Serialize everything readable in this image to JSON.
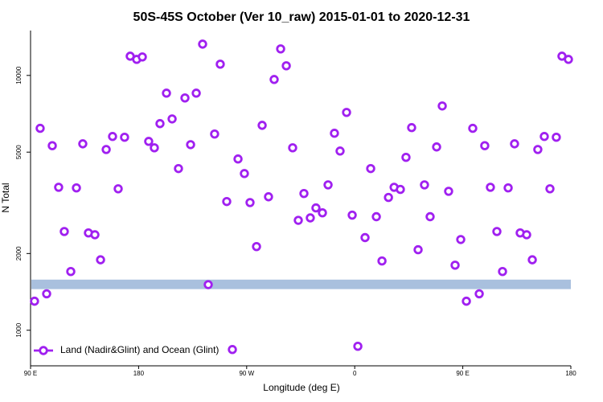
{
  "chart_data": {
    "type": "scatter",
    "title": "50S-45S October (Ver 10_raw)   2015-01-01 to 2020-12-31",
    "x_label": "Longitude (deg E)",
    "y_label": "N Total",
    "log_y": true,
    "xlim": [
      90,
      540
    ],
    "ylim": [
      725,
      15000
    ],
    "xticks": [
      {
        "value": 90,
        "label": "90 E"
      },
      180,
      {
        "value": 270,
        "label": "90 W"
      },
      {
        "value": 360,
        "label": "0"
      },
      {
        "value": 450,
        "label": "90 E"
      },
      {
        "value": 540,
        "label": "180"
      }
    ],
    "yticks": [
      1000,
      2000,
      5000,
      10000
    ],
    "legend": "bottom-left",
    "band": {
      "ylim": [
        1450,
        1580
      ],
      "color": "#a9c0de"
    },
    "series": [
      {
        "name": "Land (Nadir&Glint) and Ocean (Glint)",
        "color": "#a020f0",
        "x": [
          93.3,
          98.0,
          103.4,
          108.1,
          113.4,
          118.1,
          123.5,
          128.2,
          133.5,
          138.2,
          143.6,
          148.3,
          153.0,
          158.3,
          163.0,
          168.3,
          173.0,
          178.4,
          183.1,
          188.4,
          193.1,
          197.8,
          203.2,
          207.9,
          213.2,
          218.6,
          223.3,
          228.0,
          233.3,
          238.0,
          243.3,
          248.0,
          253.4,
          258.1,
          262.8,
          268.1,
          272.8,
          278.2,
          282.9,
          288.2,
          292.9,
          298.3,
          303.0,
          308.3,
          313.0,
          317.7,
          323.0,
          327.7,
          333.1,
          337.8,
          343.1,
          347.8,
          353.2,
          357.9,
          362.6,
          368.6,
          373.3,
          378.0,
          382.7,
          388.1,
          392.8,
          398.0,
          402.7,
          407.4,
          412.8,
          418.1,
          422.8,
          428.2,
          432.9,
          438.2,
          443.6,
          448.3,
          453.0,
          458.3,
          463.7,
          468.3,
          473.0,
          478.4,
          483.1,
          487.8,
          493.1,
          497.8,
          503.2,
          507.9,
          512.5,
          517.9,
          522.6,
          527.9,
          532.6,
          538.0
        ],
        "values": [
          1300,
          6200,
          1390,
          5300,
          3640,
          2440,
          1700,
          3620,
          5390,
          2410,
          2370,
          1890,
          5120,
          5760,
          3590,
          5720,
          11900,
          11560,
          11820,
          5510,
          5200,
          6470,
          8520,
          6750,
          4310,
          8160,
          5350,
          8520,
          13270,
          1510,
          5890,
          11070,
          3200,
          840,
          4700,
          4120,
          3170,
          2130,
          6370,
          3340,
          9640,
          12710,
          10910,
          5200,
          2700,
          3440,
          2760,
          3020,
          2890,
          3720,
          5930,
          5050,
          7160,
          2830,
          865,
          2310,
          4310,
          2790,
          1870,
          3320,
          3640,
          3570,
          4770,
          6240,
          2070,
          3720,
          2790,
          5240,
          7590,
          3510,
          1800,
          2270,
          1300,
          6200,
          1390,
          5300,
          3640,
          2440,
          1700,
          3620,
          5390,
          2410,
          2370,
          1890,
          5120,
          5760,
          3590,
          5720,
          11900,
          11560
        ]
      }
    ]
  }
}
